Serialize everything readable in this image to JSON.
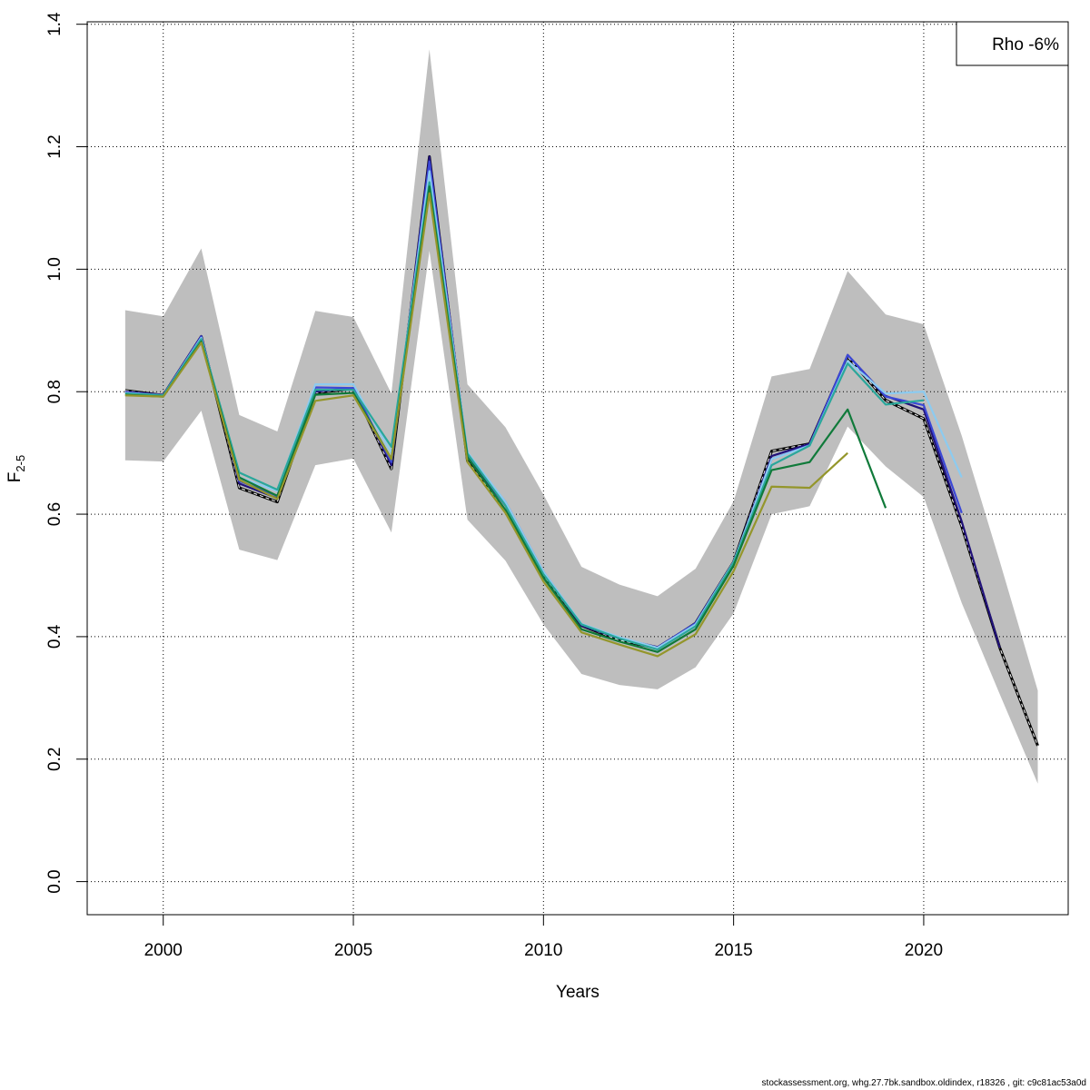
{
  "chart_data": {
    "type": "line",
    "xlabel": "Years",
    "ylabel_main": "F",
    "ylabel_sub": "2-5",
    "legend_text": "Rho -6%",
    "legend_position": "top-right",
    "grid": true,
    "xlim": [
      1998,
      2023.8
    ],
    "ylim": [
      -0.054,
      1.404
    ],
    "x_ticks": [
      2000,
      2005,
      2010,
      2015,
      2020
    ],
    "y_ticks": [
      0.0,
      0.2,
      0.4,
      0.6,
      0.8,
      1.0,
      1.2,
      1.4
    ],
    "y_tick_labels": [
      "0.0",
      "0.2",
      "0.4",
      "0.6",
      "0.8",
      "1.0",
      "1.2",
      "1.4"
    ],
    "confidence_band": {
      "color": "#bebebe",
      "x": [
        1999,
        2000,
        2001,
        2002,
        2003,
        2004,
        2005,
        2006,
        2007,
        2008,
        2009,
        2010,
        2011,
        2012,
        2013,
        2014,
        2015,
        2016,
        2017,
        2018,
        2019,
        2020,
        2021,
        2022,
        2023
      ],
      "upper": [
        0.933,
        0.923,
        1.034,
        0.762,
        0.735,
        0.932,
        0.922,
        0.797,
        1.359,
        0.812,
        0.742,
        0.632,
        0.514,
        0.485,
        0.466,
        0.511,
        0.621,
        0.825,
        0.837,
        0.997,
        0.926,
        0.91,
        0.728,
        0.523,
        0.312
      ],
      "lower": [
        0.688,
        0.686,
        0.769,
        0.542,
        0.525,
        0.68,
        0.691,
        0.57,
        1.03,
        0.591,
        0.524,
        0.42,
        0.339,
        0.321,
        0.314,
        0.35,
        0.438,
        0.6,
        0.613,
        0.743,
        0.678,
        0.628,
        0.455,
        0.306,
        0.16
      ]
    },
    "series": [
      {
        "color": "#000000",
        "dashed": true,
        "x": [
          1999,
          2000,
          2001,
          2002,
          2003,
          2004,
          2005,
          2006,
          2007,
          2008,
          2009,
          2010,
          2011,
          2012,
          2013,
          2014,
          2015,
          2016,
          2017,
          2018,
          2019,
          2020,
          2021,
          2022,
          2023
        ],
        "values": [
          0.802,
          0.794,
          0.89,
          0.643,
          0.62,
          0.798,
          0.805,
          0.674,
          1.184,
          0.687,
          0.605,
          0.5,
          0.418,
          0.394,
          0.381,
          0.422,
          0.522,
          0.703,
          0.715,
          0.857,
          0.786,
          0.756,
          0.58,
          0.382,
          0.222
        ]
      },
      {
        "color": "#21127a",
        "x": [
          1999,
          2000,
          2001,
          2002,
          2003,
          2004,
          2005,
          2006,
          2007,
          2008,
          2009,
          2010,
          2011,
          2012,
          2013,
          2014,
          2015,
          2016,
          2017,
          2018,
          2019,
          2020,
          2021,
          2022
        ],
        "values": [
          0.8,
          0.795,
          0.891,
          0.65,
          0.626,
          0.8,
          0.806,
          0.68,
          1.184,
          0.694,
          0.614,
          0.504,
          0.418,
          0.397,
          0.383,
          0.422,
          0.522,
          0.695,
          0.715,
          0.86,
          0.793,
          0.771,
          0.588,
          0.382
        ]
      },
      {
        "color": "#3b48d6",
        "x": [
          1999,
          2000,
          2001,
          2002,
          2003,
          2004,
          2005,
          2006,
          2007,
          2008,
          2009,
          2010,
          2011,
          2012,
          2013,
          2014,
          2015,
          2016,
          2017,
          2018,
          2019,
          2020,
          2021
        ],
        "values": [
          0.799,
          0.794,
          0.89,
          0.654,
          0.63,
          0.807,
          0.806,
          0.685,
          1.176,
          0.697,
          0.62,
          0.506,
          0.42,
          0.398,
          0.382,
          0.422,
          0.522,
          0.69,
          0.713,
          0.86,
          0.792,
          0.778,
          0.602
        ]
      },
      {
        "color": "#8ccbf0",
        "x": [
          1999,
          2000,
          2001,
          2002,
          2003,
          2004,
          2005,
          2006,
          2007,
          2008,
          2009,
          2010,
          2011,
          2012,
          2013,
          2014,
          2015,
          2016,
          2017,
          2018,
          2019,
          2020,
          2021
        ],
        "values": [
          0.798,
          0.794,
          0.888,
          0.66,
          0.638,
          0.812,
          0.812,
          0.7,
          1.16,
          0.701,
          0.62,
          0.506,
          0.421,
          0.399,
          0.382,
          0.42,
          0.522,
          0.69,
          0.712,
          0.85,
          0.797,
          0.8,
          0.66
        ]
      },
      {
        "color": "#2aa79b",
        "x": [
          1999,
          2000,
          2001,
          2002,
          2003,
          2004,
          2005,
          2006,
          2007,
          2008,
          2009,
          2010,
          2011,
          2012,
          2013,
          2014,
          2015,
          2016,
          2017,
          2018,
          2019,
          2020
        ],
        "values": [
          0.797,
          0.794,
          0.886,
          0.668,
          0.64,
          0.803,
          0.803,
          0.71,
          1.142,
          0.699,
          0.614,
          0.502,
          0.42,
          0.397,
          0.379,
          0.417,
          0.521,
          0.68,
          0.712,
          0.846,
          0.779,
          0.786
        ]
      },
      {
        "color": "#107a3a",
        "x": [
          1999,
          2000,
          2001,
          2002,
          2003,
          2004,
          2005,
          2006,
          2007,
          2008,
          2009,
          2010,
          2011,
          2012,
          2013,
          2014,
          2015,
          2016,
          2017,
          2018,
          2019
        ],
        "values": [
          0.795,
          0.792,
          0.882,
          0.66,
          0.63,
          0.795,
          0.798,
          0.69,
          1.135,
          0.693,
          0.607,
          0.496,
          0.412,
          0.392,
          0.375,
          0.412,
          0.516,
          0.672,
          0.685,
          0.771,
          0.61
        ]
      },
      {
        "color": "#94962b",
        "x": [
          1999,
          2000,
          2001,
          2002,
          2003,
          2004,
          2005,
          2006,
          2007,
          2008,
          2009,
          2010,
          2011,
          2012,
          2013,
          2014,
          2015,
          2016,
          2017,
          2018
        ],
        "values": [
          0.794,
          0.792,
          0.88,
          0.656,
          0.625,
          0.785,
          0.794,
          0.69,
          1.124,
          0.685,
          0.602,
          0.49,
          0.407,
          0.387,
          0.368,
          0.404,
          0.507,
          0.645,
          0.643,
          0.7
        ]
      }
    ]
  },
  "footer": "stockassessment.org, whg.27.7bk.sandbox.oldindex, r18326 , git: c9c81ac53a0d"
}
